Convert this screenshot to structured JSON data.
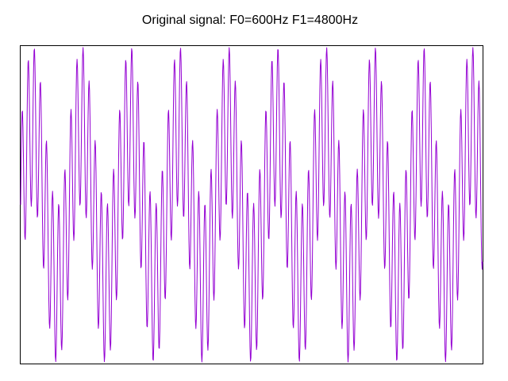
{
  "chart_data": {
    "type": "line",
    "title": "Original signal: F0=600Hz F1=4800Hz",
    "xlabel": "",
    "ylabel": "",
    "grid": false,
    "legend": "none",
    "x_unit": "s",
    "xlim": [
      0,
      0.0158
    ],
    "ylim": [
      -2,
      2
    ],
    "sample_count": 1000,
    "components": [
      {
        "frequency_hz": 600,
        "amplitude": 1
      },
      {
        "frequency_hz": 4800,
        "amplitude": 1
      }
    ],
    "series": [
      {
        "color": "#9400D3"
      }
    ]
  }
}
